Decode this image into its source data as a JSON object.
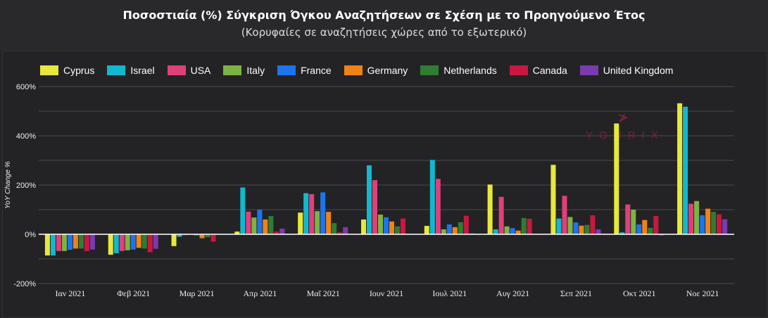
{
  "title": "Ποσοστιαία (%) Σύγκριση Όγκου Αναζητήσεων σε Σχέση με το Προηγούμενο Έτος",
  "subtitle": "(Κορυφαίες σε αναζητήσεις χώρες από το εξωτερικό)",
  "watermark": "YOURIX",
  "chart_data": {
    "type": "bar",
    "ylabel": "YoY Change %",
    "ylim": [
      -200,
      600
    ],
    "yticks": [
      "600%",
      "400%",
      "200%",
      "0%",
      "-200%"
    ],
    "grid": true,
    "legend": "top-left",
    "categories": [
      "Ιαν 2021",
      "Φεβ 2021",
      "Μαρ 2021",
      "Απρ 2021",
      "Μαΐ 2021",
      "Ιουν 2021",
      "Ιουλ 2021",
      "Αυγ 2021",
      "Σεπ 2021",
      "Οκτ 2021",
      "Νοε 2021"
    ],
    "series": [
      {
        "name": "Cyprus",
        "color": "#e8e83a",
        "values": [
          -86,
          -83,
          -48,
          11,
          88,
          60,
          34,
          202,
          282,
          450,
          532
        ]
      },
      {
        "name": "Israel",
        "color": "#11b8cf",
        "values": [
          -86,
          -77,
          -10,
          190,
          167,
          280,
          302,
          20,
          64,
          8,
          518
        ]
      },
      {
        "name": "USA",
        "color": "#e0407a",
        "values": [
          -68,
          -68,
          -3,
          92,
          163,
          220,
          225,
          152,
          156,
          121,
          124
        ]
      },
      {
        "name": "Italy",
        "color": "#7db343",
        "values": [
          -68,
          -65,
          0,
          68,
          94,
          80,
          20,
          32,
          70,
          100,
          135
        ]
      },
      {
        "name": "France",
        "color": "#1c74f0",
        "values": [
          -63,
          -62,
          -5,
          100,
          170,
          69,
          40,
          25,
          48,
          40,
          77
        ]
      },
      {
        "name": "Germany",
        "color": "#f08312",
        "values": [
          -58,
          -55,
          -16,
          60,
          91,
          52,
          29,
          15,
          35,
          58,
          104
        ]
      },
      {
        "name": "Netherlands",
        "color": "#2e7d32",
        "values": [
          -58,
          -58,
          -12,
          74,
          45,
          32,
          49,
          66,
          38,
          26,
          91
        ]
      },
      {
        "name": "Canada",
        "color": "#c8183f",
        "values": [
          -68,
          -73,
          -30,
          11,
          8,
          64,
          75,
          63,
          77,
          74,
          81
        ]
      },
      {
        "name": "United Kingdom",
        "color": "#7a3ab0",
        "values": [
          -62,
          -59,
          -1,
          23,
          29,
          0,
          4,
          0,
          20,
          -5,
          61
        ]
      }
    ]
  }
}
